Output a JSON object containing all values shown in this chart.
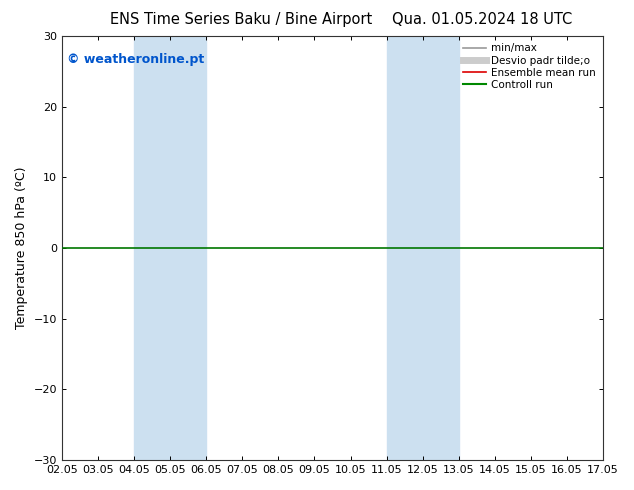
{
  "title_left": "ENS Time Series Baku / Bine Airport",
  "title_right": "Qua. 01.05.2024 18 UTC",
  "ylabel": "Temperature 850 hPa (ºC)",
  "ylim": [
    -30,
    30
  ],
  "yticks": [
    -30,
    -20,
    -10,
    0,
    10,
    20,
    30
  ],
  "xtick_labels": [
    "02.05",
    "03.05",
    "04.05",
    "05.05",
    "06.05",
    "07.05",
    "08.05",
    "09.05",
    "10.05",
    "11.05",
    "12.05",
    "13.05",
    "14.05",
    "15.05",
    "16.05",
    "17.05"
  ],
  "xlim": [
    0,
    15
  ],
  "shaded_bands": [
    {
      "xmin": 2.0,
      "xmax": 4.0,
      "color": "#cce0f0",
      "alpha": 1.0
    },
    {
      "xmin": 9.0,
      "xmax": 11.0,
      "color": "#cce0f0",
      "alpha": 1.0
    }
  ],
  "hline_y": 0,
  "hline_color": "#007700",
  "hline_lw": 1.2,
  "copyright_text": "© weatheronline.pt",
  "copyright_color": "#0055cc",
  "copyright_fontsize": 9,
  "legend_items": [
    {
      "label": "min/max",
      "color": "#999999",
      "lw": 1.2,
      "ls": "-"
    },
    {
      "label": "Desvio padr tilde;o",
      "color": "#cccccc",
      "lw": 5,
      "ls": "-"
    },
    {
      "label": "Ensemble mean run",
      "color": "#dd0000",
      "lw": 1.2,
      "ls": "-"
    },
    {
      "label": "Controll run",
      "color": "#008800",
      "lw": 1.5,
      "ls": "-"
    }
  ],
  "bg_color": "#ffffff",
  "plot_bg_color": "#ffffff",
  "title_fontsize": 10.5,
  "tick_fontsize": 8,
  "ylabel_fontsize": 9
}
